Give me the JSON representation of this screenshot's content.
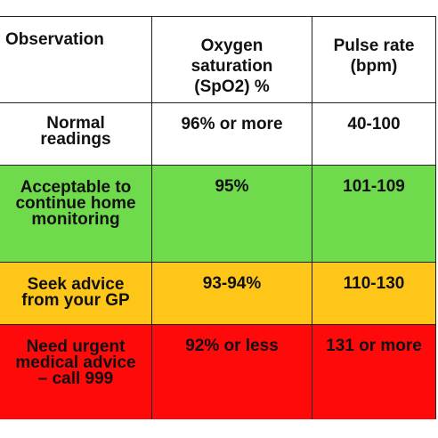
{
  "colors": {
    "normal": "#ffffff",
    "acceptable": "#6fdb4c",
    "seek_advice": "#ffc61a",
    "urgent": "#ff0a0a"
  },
  "header": {
    "observation": "Observation",
    "oxygen": "Oxygen\nsaturation\n(SpO2) %",
    "pulse": "Pulse rate\n(bpm)"
  },
  "rows": [
    {
      "observation": "Normal\nreadings",
      "oxygen": "96% or more",
      "pulse": "40-100"
    },
    {
      "observation": "Acceptable to\ncontinue home\nmonitoring",
      "oxygen": "95%",
      "pulse": "101-109"
    },
    {
      "observation": "Seek advice\nfrom your GP",
      "oxygen": "93-94%",
      "pulse": "110-130"
    },
    {
      "observation": "Need urgent\nmedical advice\n– call 999",
      "oxygen": "92% or less",
      "pulse": "131 or more"
    }
  ]
}
